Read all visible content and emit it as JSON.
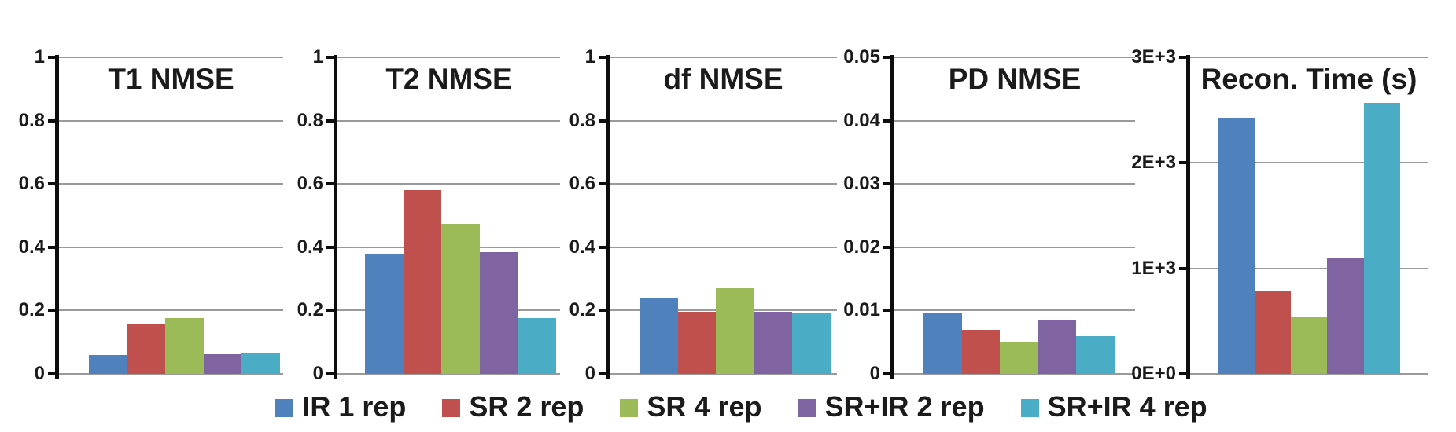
{
  "figure": {
    "background": "#ffffff",
    "text_color": "#1b1b1b",
    "gridline_color": "#9a9a9a",
    "axis_color": "#0d0d0d"
  },
  "legend": {
    "position": "bottom-center",
    "items": [
      {
        "label": "IR 1 rep",
        "color": "#4F81BD"
      },
      {
        "label": "SR 2 rep",
        "color": "#C0504D"
      },
      {
        "label": "SR 4 rep",
        "color": "#9BBB59"
      },
      {
        "label": "SR+IR 2 rep",
        "color": "#8064A2"
      },
      {
        "label": "SR+IR 4 rep",
        "color": "#4BACC6"
      }
    ]
  },
  "chart_data": [
    {
      "type": "bar",
      "title": "T1 NMSE",
      "ylim": [
        0,
        1
      ],
      "grid": true,
      "yticks": [
        {
          "value": 1,
          "label": "1"
        },
        {
          "value": 0.8,
          "label": "0.8"
        },
        {
          "value": 0.6,
          "label": "0.6"
        },
        {
          "value": 0.4,
          "label": "0.4"
        },
        {
          "value": 0.2,
          "label": "0.2"
        },
        {
          "value": 0,
          "label": "0"
        }
      ],
      "series": [
        {
          "name": "IR 1 rep",
          "color": "#4F81BD",
          "value": 0.06
        },
        {
          "name": "SR 2 rep",
          "color": "#C0504D",
          "value": 0.16
        },
        {
          "name": "SR 4 rep",
          "color": "#9BBB59",
          "value": 0.175
        },
        {
          "name": "SR+IR 2 rep",
          "color": "#8064A2",
          "value": 0.063
        },
        {
          "name": "SR+IR 4 rep",
          "color": "#4BACC6",
          "value": 0.065
        }
      ]
    },
    {
      "type": "bar",
      "title": "T2 NMSE",
      "ylim": [
        0,
        1
      ],
      "grid": true,
      "yticks": [
        {
          "value": 1,
          "label": "1"
        },
        {
          "value": 0.8,
          "label": "0.8"
        },
        {
          "value": 0.6,
          "label": "0.6"
        },
        {
          "value": 0.4,
          "label": "0.4"
        },
        {
          "value": 0.2,
          "label": "0.2"
        },
        {
          "value": 0,
          "label": "0"
        }
      ],
      "series": [
        {
          "name": "IR 1 rep",
          "color": "#4F81BD",
          "value": 0.38
        },
        {
          "name": "SR 2 rep",
          "color": "#C0504D",
          "value": 0.58
        },
        {
          "name": "SR 4 rep",
          "color": "#9BBB59",
          "value": 0.475
        },
        {
          "name": "SR+IR 2 rep",
          "color": "#8064A2",
          "value": 0.385
        },
        {
          "name": "SR+IR 4 rep",
          "color": "#4BACC6",
          "value": 0.175
        }
      ]
    },
    {
      "type": "bar",
      "title": "df NMSE",
      "ylim": [
        0,
        1
      ],
      "grid": true,
      "yticks": [
        {
          "value": 1,
          "label": "1"
        },
        {
          "value": 0.8,
          "label": "0.8"
        },
        {
          "value": 0.6,
          "label": "0.6"
        },
        {
          "value": 0.4,
          "label": "0.4"
        },
        {
          "value": 0.2,
          "label": "0.2"
        },
        {
          "value": 0,
          "label": "0"
        }
      ],
      "series": [
        {
          "name": "IR 1 rep",
          "color": "#4F81BD",
          "value": 0.24
        },
        {
          "name": "SR 2 rep",
          "color": "#C0504D",
          "value": 0.195
        },
        {
          "name": "SR 4 rep",
          "color": "#9BBB59",
          "value": 0.27
        },
        {
          "name": "SR+IR 2 rep",
          "color": "#8064A2",
          "value": 0.195
        },
        {
          "name": "SR+IR 4 rep",
          "color": "#4BACC6",
          "value": 0.19
        }
      ]
    },
    {
      "type": "bar",
      "title": "PD NMSE",
      "ylim": [
        0,
        0.05
      ],
      "grid": true,
      "yticks": [
        {
          "value": 0.05,
          "label": "0.05"
        },
        {
          "value": 0.04,
          "label": "0.04"
        },
        {
          "value": 0.03,
          "label": "0.03"
        },
        {
          "value": 0.02,
          "label": "0.02"
        },
        {
          "value": 0.01,
          "label": "0.01"
        },
        {
          "value": 0,
          "label": "0"
        }
      ],
      "series": [
        {
          "name": "IR 1 rep",
          "color": "#4F81BD",
          "value": 0.0095
        },
        {
          "name": "SR 2 rep",
          "color": "#C0504D",
          "value": 0.007
        },
        {
          "name": "SR 4 rep",
          "color": "#9BBB59",
          "value": 0.005
        },
        {
          "name": "SR+IR 2 rep",
          "color": "#8064A2",
          "value": 0.0085
        },
        {
          "name": "SR+IR 4 rep",
          "color": "#4BACC6",
          "value": 0.006
        }
      ]
    },
    {
      "type": "bar",
      "title": "Recon. Time (s)",
      "ylim": [
        0,
        3000
      ],
      "grid": true,
      "yticks": [
        {
          "value": 3000,
          "label": "3E+3"
        },
        {
          "value": 2000,
          "label": "2E+3"
        },
        {
          "value": 1000,
          "label": "1E+3"
        },
        {
          "value": 0,
          "label": "0E+0"
        }
      ],
      "series": [
        {
          "name": "IR 1 rep",
          "color": "#4F81BD",
          "value": 2430
        },
        {
          "name": "SR 2 rep",
          "color": "#C0504D",
          "value": 780
        },
        {
          "name": "SR 4 rep",
          "color": "#9BBB59",
          "value": 540
        },
        {
          "name": "SR+IR 2 rep",
          "color": "#8064A2",
          "value": 1100
        },
        {
          "name": "SR+IR 4 rep",
          "color": "#4BACC6",
          "value": 2570
        }
      ]
    }
  ]
}
